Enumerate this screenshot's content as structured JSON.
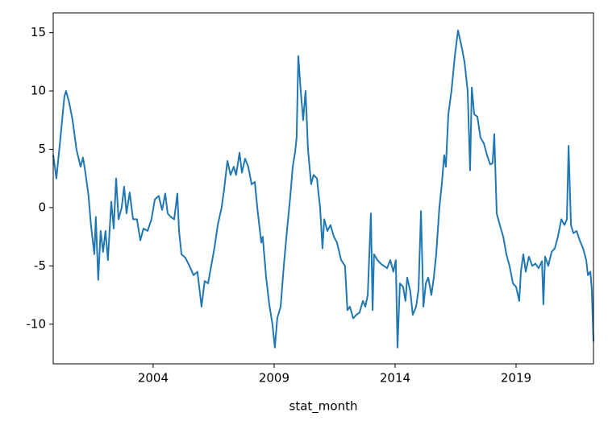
{
  "chart_data": {
    "type": "line",
    "xlabel": "stat_month",
    "x": [
      1999.87,
      2000.0,
      2000.17,
      2000.33,
      2000.4,
      2000.53,
      2000.67,
      2000.83,
      2001.0,
      2001.1,
      2001.2,
      2001.33,
      2001.43,
      2001.57,
      2001.63,
      2001.73,
      2001.83,
      2001.93,
      2002.03,
      2002.13,
      2002.27,
      2002.37,
      2002.47,
      2002.57,
      2002.7,
      2002.8,
      2002.9,
      2003.03,
      2003.17,
      2003.33,
      2003.47,
      2003.6,
      2003.77,
      2003.93,
      2004.07,
      2004.23,
      2004.37,
      2004.5,
      2004.6,
      2004.73,
      2004.87,
      2005.0,
      2005.07,
      2005.17,
      2005.33,
      2005.5,
      2005.67,
      2005.83,
      2006.0,
      2006.13,
      2006.27,
      2006.4,
      2006.53,
      2006.67,
      2006.83,
      2006.93,
      2007.07,
      2007.2,
      2007.33,
      2007.43,
      2007.57,
      2007.67,
      2007.8,
      2007.93,
      2008.07,
      2008.2,
      2008.33,
      2008.47,
      2008.53,
      2008.67,
      2008.8,
      2008.93,
      2009.03,
      2009.13,
      2009.27,
      2009.4,
      2009.53,
      2009.67,
      2009.77,
      2009.87,
      2009.93,
      2010.0,
      2010.1,
      2010.2,
      2010.3,
      2010.4,
      2010.53,
      2010.63,
      2010.77,
      2010.9,
      2011.0,
      2011.07,
      2011.2,
      2011.33,
      2011.47,
      2011.6,
      2011.77,
      2011.93,
      2012.03,
      2012.13,
      2012.27,
      2012.4,
      2012.53,
      2012.67,
      2012.77,
      2012.87,
      2013.0,
      2013.07,
      2013.13,
      2013.27,
      2013.4,
      2013.53,
      2013.67,
      2013.8,
      2013.93,
      2014.03,
      2014.1,
      2014.2,
      2014.33,
      2014.43,
      2014.5,
      2014.63,
      2014.73,
      2014.87,
      2014.97,
      2015.07,
      2015.17,
      2015.27,
      2015.37,
      2015.5,
      2015.6,
      2015.7,
      2015.83,
      2015.93,
      2016.03,
      2016.1,
      2016.2,
      2016.33,
      2016.47,
      2016.6,
      2016.73,
      2016.87,
      2017.0,
      2017.1,
      2017.17,
      2017.27,
      2017.4,
      2017.53,
      2017.67,
      2017.8,
      2017.93,
      2018.03,
      2018.1,
      2018.2,
      2018.33,
      2018.47,
      2018.6,
      2018.73,
      2018.87,
      2019.0,
      2019.13,
      2019.2,
      2019.3,
      2019.4,
      2019.53,
      2019.67,
      2019.8,
      2019.93,
      2020.07,
      2020.13,
      2020.2,
      2020.33,
      2020.47,
      2020.6,
      2020.73,
      2020.87,
      2021.0,
      2021.1,
      2021.17,
      2021.27,
      2021.37,
      2021.5,
      2021.63,
      2021.77,
      2021.9,
      2021.97,
      2022.07,
      2022.13,
      2022.2
    ],
    "series": [
      {
        "color": "#1f77b4",
        "values": [
          4.5,
          2.5,
          6,
          9.5,
          10,
          9,
          7.5,
          5,
          3.5,
          4.3,
          3,
          1,
          -1.5,
          -4,
          -0.8,
          -6.2,
          -2,
          -3.8,
          -2,
          -4.5,
          0.5,
          -1.8,
          2.5,
          -1,
          0,
          1.8,
          -0.5,
          1.3,
          -1,
          -1,
          -2.8,
          -1.8,
          -2,
          -1,
          0.7,
          1.0,
          -0.2,
          1.2,
          -0.5,
          -0.8,
          -1,
          1.2,
          -2,
          -4,
          -4.3,
          -5,
          -5.8,
          -5.5,
          -8.5,
          -6.3,
          -6.5,
          -5,
          -3.5,
          -1.5,
          0,
          1.5,
          4,
          2.8,
          3.5,
          2.8,
          4.7,
          3,
          4.2,
          3.5,
          2,
          2.2,
          -0.5,
          -3,
          -2.5,
          -6,
          -8.3,
          -10,
          -12,
          -9.5,
          -8.5,
          -5,
          -2,
          1,
          3.5,
          4.8,
          6,
          13,
          10,
          7.5,
          10,
          5,
          2,
          2.8,
          2.5,
          0,
          -3.5,
          -1,
          -2,
          -1.5,
          -2.5,
          -3,
          -4.5,
          -5,
          -8.8,
          -8.5,
          -9.5,
          -9.2,
          -9,
          -8,
          -8.5,
          -7.5,
          -0.5,
          -8.8,
          -4,
          -4.5,
          -4.8,
          -5,
          -5.2,
          -4.5,
          -5.5,
          -4.5,
          -12,
          -6.5,
          -6.8,
          -8,
          -6,
          -7.2,
          -9.2,
          -8.5,
          -7,
          -0.3,
          -8.5,
          -6.5,
          -6,
          -7.5,
          -6,
          -4,
          0,
          2,
          4.5,
          3.5,
          8,
          10,
          13,
          15.2,
          14,
          12.5,
          10,
          3.2,
          10.3,
          8,
          7.8,
          6,
          5.5,
          4.5,
          3.7,
          3.8,
          6.3,
          -0.5,
          -1.5,
          -2.5,
          -4,
          -5,
          -6.5,
          -6.8,
          -8,
          -5.5,
          -4,
          -5.5,
          -4.2,
          -5,
          -4.8,
          -5.2,
          -4.6,
          -8.3,
          -4.2,
          -5,
          -3.8,
          -3.5,
          -2.5,
          -1,
          -1.5,
          -1,
          5.3,
          -1.5,
          -2.2,
          -2,
          -2.8,
          -3.5,
          -4.5,
          -5.8,
          -5.5,
          -7,
          -11.5
        ]
      }
    ],
    "xlim": [
      1999.87,
      2022.2
    ],
    "xticks": [
      2004,
      2009,
      2014,
      2019
    ],
    "ylim": [
      -13.4,
      16.7
    ],
    "yticks": [
      -10,
      -5,
      0,
      5,
      10,
      15
    ]
  }
}
